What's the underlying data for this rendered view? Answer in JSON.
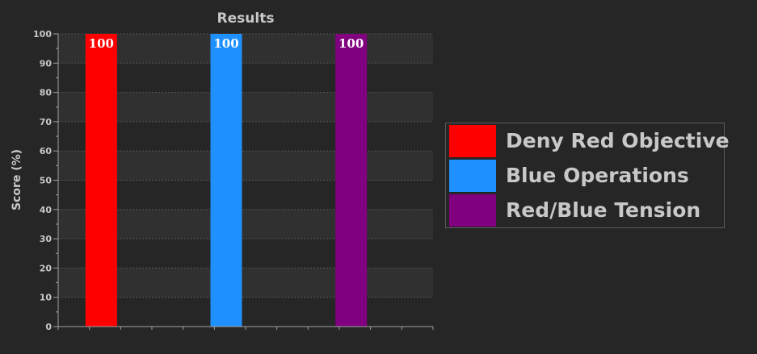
{
  "chart_data": {
    "type": "bar",
    "title": "Results",
    "xlabel": "",
    "ylabel": "Score (%)",
    "ylim": [
      0,
      100
    ],
    "yticks": [
      0,
      10,
      20,
      30,
      40,
      50,
      60,
      70,
      80,
      90,
      100
    ],
    "grid": true,
    "legend_position": "right",
    "series": [
      {
        "name": "Deny Red Objective",
        "value": 100,
        "label": "100",
        "color": "#ff0000"
      },
      {
        "name": "Blue Operations",
        "value": 100,
        "label": "100",
        "color": "#1e90ff"
      },
      {
        "name": "Red/Blue Tension",
        "value": 100,
        "label": "100",
        "color": "#800080"
      }
    ]
  },
  "colors": {
    "background": "#262626",
    "band": "#303030",
    "text": "#c8c8c8",
    "axis": "#a0a0a0",
    "grid": "#555555"
  }
}
